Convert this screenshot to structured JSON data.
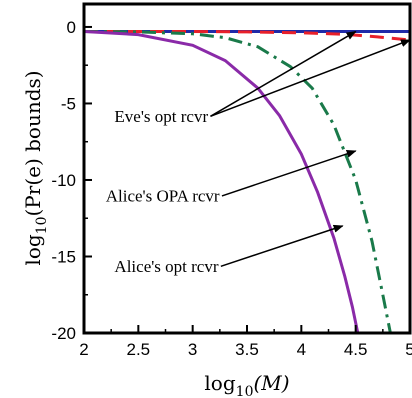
{
  "chart_data": {
    "type": "line",
    "xlabel_main": "log",
    "xlabel_sub": "10",
    "xlabel_rest": "(M)",
    "ylabel_main": "log",
    "ylabel_sub": "10",
    "ylabel_rest": "(Pr(e) bounds)",
    "xlim": [
      2,
      5
    ],
    "ylim": [
      -20,
      1.5
    ],
    "x_ticks": [
      2,
      2.5,
      3,
      3.5,
      4,
      4.5,
      5
    ],
    "x_tick_labels": [
      "2",
      "2.5",
      "3",
      "3.5",
      "4",
      "4.5",
      "5"
    ],
    "y_ticks": [
      0,
      -5,
      -10,
      -15,
      -20
    ],
    "y_tick_labels": [
      "0",
      "-5",
      "-10",
      "-15",
      "-20"
    ],
    "grid": false,
    "series": [
      {
        "color": "#1f2aa8",
        "dash": "solid",
        "x": [
          2,
          2.5,
          3,
          3.5,
          4,
          4.5,
          5
        ],
        "y": [
          -0.3,
          -0.3,
          -0.3,
          -0.3,
          -0.3,
          -0.3,
          -0.3
        ]
      },
      {
        "color": "#e8202a",
        "dash": "dashed",
        "x": [
          2,
          2.5,
          3,
          3.5,
          4,
          4.4,
          4.7,
          5
        ],
        "y": [
          -0.3,
          -0.3,
          -0.3,
          -0.32,
          -0.38,
          -0.48,
          -0.65,
          -0.85
        ]
      },
      {
        "color": "#1a7a4a",
        "dash": "dashdot",
        "x": [
          2,
          2.5,
          3,
          3.3,
          3.6,
          3.9,
          4.1,
          4.3,
          4.5,
          4.65,
          4.75,
          4.82
        ],
        "y": [
          -0.3,
          -0.32,
          -0.45,
          -0.7,
          -1.3,
          -2.6,
          -4.0,
          -6.4,
          -10.0,
          -14.0,
          -17.5,
          -20
        ]
      },
      {
        "color": "#8a2aa8",
        "dash": "solid",
        "x": [
          2,
          2.5,
          3,
          3.3,
          3.6,
          3.8,
          4.0,
          4.15,
          4.3,
          4.4,
          4.47,
          4.52
        ],
        "y": [
          -0.3,
          -0.5,
          -1.2,
          -2.2,
          -4.0,
          -5.8,
          -8.3,
          -10.8,
          -13.8,
          -16.3,
          -18.3,
          -20
        ]
      }
    ],
    "annotations": [
      {
        "text": "Eve's opt rcvr",
        "tx": 2.28,
        "ty": -6.2,
        "ax": 4.5,
        "ay": -0.3
      },
      {
        "text": "Eve's opt rcvr",
        "tx": 2.28,
        "ty": -6.2,
        "ax": 5.0,
        "ay": -0.85
      },
      {
        "text": "Alice's OPA rcvr",
        "tx": 2.2,
        "ty": -11.4,
        "ax": 4.5,
        "ay": -8.1
      },
      {
        "text": "Alice's opt rcvr",
        "tx": 2.28,
        "ty": -16.0,
        "ax": 4.38,
        "ay": -13.0
      }
    ]
  }
}
